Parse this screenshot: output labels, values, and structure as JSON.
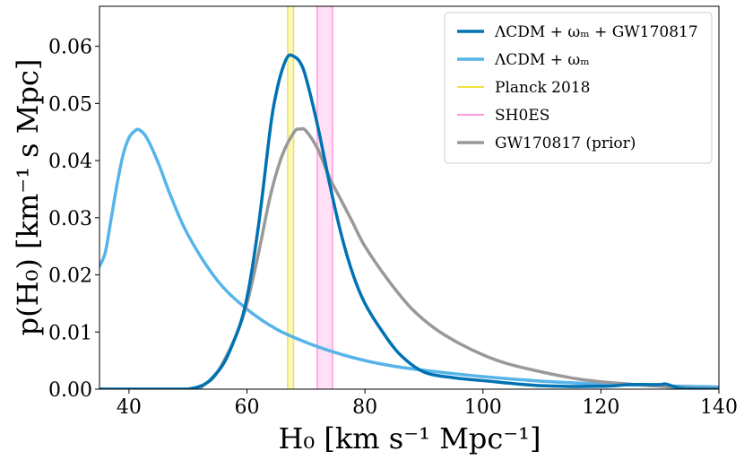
{
  "chart_data": {
    "type": "line",
    "xlabel": "H₀ [km s⁻¹ Mpc⁻¹]",
    "ylabel": "p(H₀)  [km⁻¹ s Mpc]",
    "xlim": [
      35,
      140
    ],
    "ylim": [
      0,
      0.067
    ],
    "xticks": [
      40,
      60,
      80,
      100,
      120,
      140
    ],
    "yticks": [
      0.0,
      0.01,
      0.02,
      0.03,
      0.04,
      0.05,
      0.06
    ],
    "xtick_labels": [
      "40",
      "60",
      "80",
      "100",
      "120",
      "140"
    ],
    "ytick_labels": [
      "0.00",
      "0.01",
      "0.02",
      "0.03",
      "0.04",
      "0.05",
      "0.06"
    ],
    "legend_position": "top-right",
    "series": [
      {
        "name": "ΛCDM + ωₘ + GW170817",
        "color": "#0072b2",
        "x": [
          35,
          50,
          55,
          58,
          60,
          62,
          64,
          65,
          66,
          67,
          68,
          69,
          70,
          72,
          74,
          76,
          78,
          80,
          83,
          86,
          90,
          95,
          100,
          110,
          120,
          125,
          130,
          131,
          134,
          140
        ],
        "y": [
          0,
          0,
          0.003,
          0.009,
          0.016,
          0.029,
          0.046,
          0.052,
          0.056,
          0.0583,
          0.0582,
          0.0572,
          0.0545,
          0.046,
          0.036,
          0.027,
          0.02,
          0.015,
          0.01,
          0.006,
          0.003,
          0.002,
          0.0015,
          0.0006,
          0.0005,
          0.0008,
          0.0008,
          0.0009,
          0.0001,
          0
        ]
      },
      {
        "name": "ΛCDM + ωₘ",
        "color": "#56b4e9",
        "x": [
          35,
          36,
          37,
          38,
          39,
          40,
          41,
          41.7,
          43,
          45,
          47,
          50,
          55,
          60,
          65,
          70,
          75,
          80,
          85,
          90,
          100,
          110,
          120,
          130,
          140
        ],
        "y": [
          0.0215,
          0.024,
          0.03,
          0.036,
          0.041,
          0.044,
          0.0452,
          0.0454,
          0.044,
          0.0395,
          0.034,
          0.027,
          0.019,
          0.014,
          0.0105,
          0.0082,
          0.0064,
          0.005,
          0.004,
          0.0033,
          0.0022,
          0.0014,
          0.0009,
          0.0006,
          0.0004
        ]
      },
      {
        "name": "GW170817 (prior)",
        "color": "#999999",
        "x": [
          35,
          50,
          53,
          55,
          58,
          60,
          62,
          64,
          66,
          68,
          69,
          70,
          72,
          74,
          76,
          78,
          80,
          84,
          88,
          92,
          96,
          100,
          104,
          110,
          116,
          120,
          126,
          130,
          135,
          140
        ],
        "y": [
          0,
          0,
          0.001,
          0.003,
          0.009,
          0.015,
          0.024,
          0.034,
          0.041,
          0.045,
          0.0455,
          0.0452,
          0.042,
          0.037,
          0.033,
          0.029,
          0.025,
          0.019,
          0.014,
          0.0105,
          0.008,
          0.006,
          0.0045,
          0.003,
          0.0018,
          0.0013,
          0.0008,
          0.0005,
          0.0002,
          0.0001
        ]
      }
    ],
    "bands": [
      {
        "name": "Planck 2018",
        "color": "#f0e442",
        "center": 67.4,
        "half_width": 0.5
      },
      {
        "name": "SH0ES",
        "color": "#ff99dd",
        "center": 73.2,
        "half_width": 1.3
      }
    ],
    "legend": [
      {
        "label": "ΛCDM + ωₘ + GW170817",
        "color": "#0072b2"
      },
      {
        "label": "ΛCDM + ωₘ",
        "color": "#56b4e9"
      },
      {
        "label": "Planck 2018",
        "color": "#f0e442"
      },
      {
        "label": "SH0ES",
        "color": "#ff99dd"
      },
      {
        "label": "GW170817 (prior)",
        "color": "#999999"
      }
    ]
  }
}
